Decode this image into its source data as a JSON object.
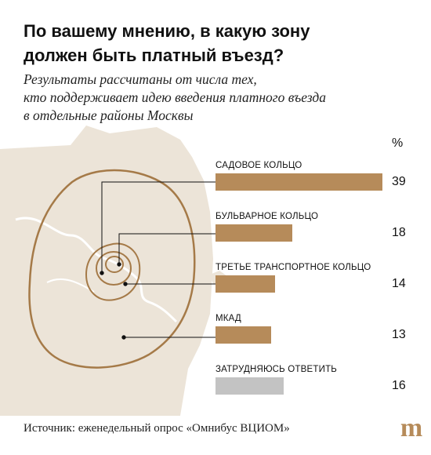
{
  "header": {
    "title_line1": "По вашему мнению, в какую зону",
    "title_line2": "должен быть платный въезд?",
    "subtitle_line1": "Результаты рассчитаны от числа тех,",
    "subtitle_line2": "кто поддерживает идею введения платного въезда",
    "subtitle_line3": "в отдельные районы Москвы"
  },
  "chart_data": {
    "type": "bar",
    "unit": "%",
    "categories": [
      "САДОВОЕ КОЛЬЦО",
      "БУЛЬВАРНОЕ КОЛЬЦО",
      "ТРЕТЬЕ ТРАНСПОРТНОЕ КОЛЬЦО",
      "МКАД",
      "ЗАТРУДНЯЮСЬ ОТВЕТИТЬ"
    ],
    "values": [
      39,
      18,
      14,
      13,
      16
    ],
    "colors": [
      "#b68b5a",
      "#b68b5a",
      "#b68b5a",
      "#b68b5a",
      "#c3c3c3"
    ],
    "xlim": [
      0,
      39
    ]
  },
  "footer": {
    "source": "Источник: еженедельный опрос «Омнибус ВЦИОМ»"
  },
  "colors": {
    "accent": "#b68b5a",
    "neutral": "#c3c3c3",
    "map_fill": "#ece4d8",
    "ring_stroke": "#a57a48",
    "logo": "#b68b5a"
  }
}
